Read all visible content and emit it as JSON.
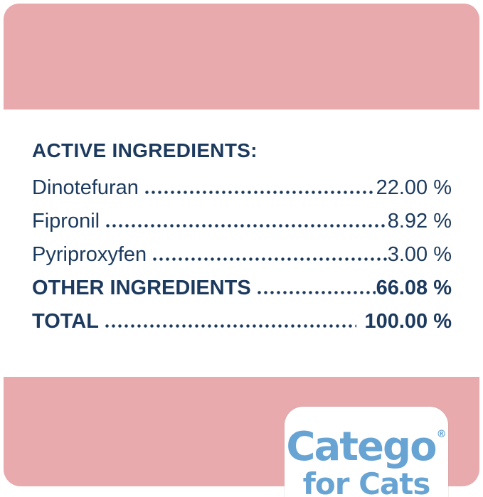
{
  "panel": {
    "heading": "ACTIVE INGREDIENTS:",
    "rows": [
      {
        "name": "Dinotefuran",
        "value": "22.00 %"
      },
      {
        "name": "Fipronil",
        "value": "8.92 %"
      },
      {
        "name": "Pyriproxyfen",
        "value": "3.00 %"
      },
      {
        "name": "OTHER INGREDIENTS",
        "value": "66.08 %"
      },
      {
        "name": "TOTAL",
        "value": "100.00 %"
      }
    ]
  },
  "logo": {
    "brand": "Catego",
    "registered_mark": "®",
    "subtitle": "for Cats"
  },
  "colors": {
    "band_pink": "#e8aaad",
    "text_navy": "#1c3a5e",
    "logo_blue": "#68a4d3",
    "background": "#ffffff"
  }
}
